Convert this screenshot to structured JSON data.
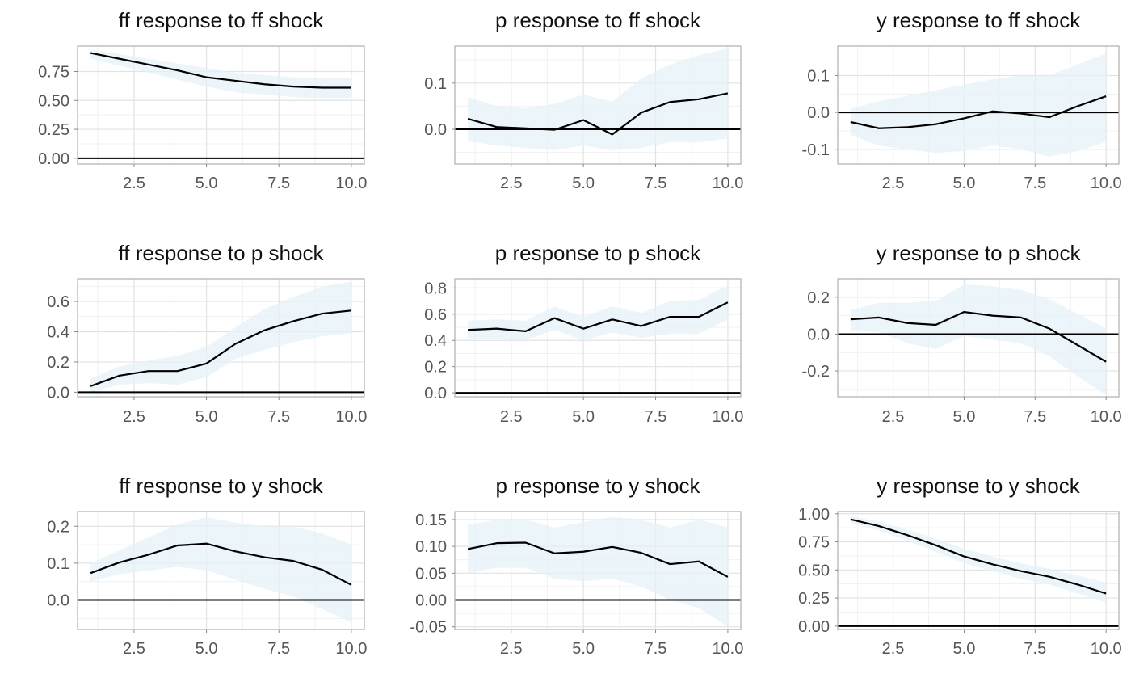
{
  "style": {
    "band_fill": "#e6f2f8",
    "line_color": "#000000",
    "zero_line_color": "#000000",
    "grid_major": "#e3e3e3",
    "grid_minor": "#f1f1f1",
    "panel_border": "#b5b5b5",
    "tick_text": "#555555"
  },
  "chart_data": [
    {
      "type": "line",
      "title": "ff response to ff shock",
      "x": [
        1,
        2,
        3,
        4,
        5,
        6,
        7,
        8,
        9,
        10
      ],
      "values": [
        0.91,
        0.86,
        0.81,
        0.76,
        0.7,
        0.67,
        0.64,
        0.62,
        0.61,
        0.61
      ],
      "lower": [
        0.86,
        0.8,
        0.74,
        0.68,
        0.62,
        0.57,
        0.55,
        0.53,
        0.52,
        0.52
      ],
      "upper": [
        0.94,
        0.9,
        0.86,
        0.82,
        0.78,
        0.74,
        0.72,
        0.7,
        0.69,
        0.69
      ],
      "xlim": [
        0.55,
        10.45
      ],
      "ylim": [
        -0.05,
        0.97
      ],
      "xticks": [
        2.5,
        5.0,
        7.5,
        10.0
      ],
      "xtick_labels": [
        "2.5",
        "5.0",
        "7.5",
        "10.0"
      ],
      "yticks": [
        0,
        0.25,
        0.5,
        0.75
      ],
      "ytick_labels": [
        "0.00",
        "0.25",
        "0.50",
        "0.75"
      ]
    },
    {
      "type": "line",
      "title": "p response to ff shock",
      "x": [
        1,
        2,
        3,
        4,
        5,
        6,
        7,
        8,
        9,
        10
      ],
      "values": [
        0.023,
        0.005,
        0.002,
        -0.001,
        0.02,
        -0.011,
        0.036,
        0.059,
        0.065,
        0.078
      ],
      "lower": [
        -0.025,
        -0.035,
        -0.04,
        -0.045,
        -0.035,
        -0.045,
        -0.04,
        -0.028,
        -0.028,
        -0.02
      ],
      "upper": [
        0.07,
        0.05,
        0.045,
        0.055,
        0.075,
        0.06,
        0.11,
        0.14,
        0.16,
        0.175
      ],
      "xlim": [
        0.55,
        10.45
      ],
      "ylim": [
        -0.075,
        0.18
      ],
      "xticks": [
        2.5,
        5.0,
        7.5,
        10.0
      ],
      "xtick_labels": [
        "2.5",
        "5.0",
        "7.5",
        "10.0"
      ],
      "yticks": [
        0,
        0.1
      ],
      "ytick_labels": [
        "0.0",
        "0.1"
      ]
    },
    {
      "type": "line",
      "title": "y response to ff shock",
      "x": [
        1,
        2,
        3,
        4,
        5,
        6,
        7,
        8,
        9,
        10
      ],
      "values": [
        -0.026,
        -0.043,
        -0.04,
        -0.032,
        -0.016,
        0.003,
        -0.003,
        -0.013,
        0.017,
        0.044
      ],
      "lower": [
        -0.06,
        -0.09,
        -0.1,
        -0.11,
        -0.105,
        -0.09,
        -0.1,
        -0.12,
        -0.105,
        -0.08
      ],
      "upper": [
        0.01,
        0.03,
        0.045,
        0.06,
        0.075,
        0.09,
        0.1,
        0.1,
        0.13,
        0.16
      ],
      "xlim": [
        0.55,
        10.45
      ],
      "ylim": [
        -0.14,
        0.18
      ],
      "xticks": [
        2.5,
        5.0,
        7.5,
        10.0
      ],
      "xtick_labels": [
        "2.5",
        "5.0",
        "7.5",
        "10.0"
      ],
      "yticks": [
        -0.1,
        0,
        0.1
      ],
      "ytick_labels": [
        "-0.1",
        "0.0",
        "0.1"
      ]
    },
    {
      "type": "line",
      "title": "ff response to p shock",
      "x": [
        1,
        2,
        3,
        4,
        5,
        6,
        7,
        8,
        9,
        10
      ],
      "values": [
        0.04,
        0.11,
        0.14,
        0.14,
        0.19,
        0.32,
        0.41,
        0.47,
        0.52,
        0.54
      ],
      "lower": [
        0.0,
        0.05,
        0.06,
        0.05,
        0.1,
        0.22,
        0.28,
        0.33,
        0.37,
        0.39
      ],
      "upper": [
        0.09,
        0.17,
        0.21,
        0.24,
        0.3,
        0.43,
        0.55,
        0.63,
        0.7,
        0.73
      ],
      "xlim": [
        0.55,
        10.45
      ],
      "ylim": [
        -0.03,
        0.75
      ],
      "xticks": [
        2.5,
        5.0,
        7.5,
        10.0
      ],
      "xtick_labels": [
        "2.5",
        "5.0",
        "7.5",
        "10.0"
      ],
      "yticks": [
        0,
        0.2,
        0.4,
        0.6
      ],
      "ytick_labels": [
        "0.0",
        "0.2",
        "0.4",
        "0.6"
      ]
    },
    {
      "type": "line",
      "title": "p response to p shock",
      "x": [
        1,
        2,
        3,
        4,
        5,
        6,
        7,
        8,
        9,
        10
      ],
      "values": [
        0.48,
        0.49,
        0.47,
        0.57,
        0.49,
        0.56,
        0.51,
        0.58,
        0.58,
        0.69
      ],
      "lower": [
        0.41,
        0.41,
        0.4,
        0.48,
        0.4,
        0.46,
        0.42,
        0.45,
        0.45,
        0.56
      ],
      "upper": [
        0.55,
        0.56,
        0.55,
        0.66,
        0.58,
        0.66,
        0.61,
        0.7,
        0.71,
        0.82
      ],
      "xlim": [
        0.55,
        10.45
      ],
      "ylim": [
        -0.03,
        0.87
      ],
      "xticks": [
        2.5,
        5.0,
        7.5,
        10.0
      ],
      "xtick_labels": [
        "2.5",
        "5.0",
        "7.5",
        "10.0"
      ],
      "yticks": [
        0,
        0.2,
        0.4,
        0.6,
        0.8
      ],
      "ytick_labels": [
        "0.0",
        "0.2",
        "0.4",
        "0.6",
        "0.8"
      ]
    },
    {
      "type": "line",
      "title": "y response to p shock",
      "x": [
        1,
        2,
        3,
        4,
        5,
        6,
        7,
        8,
        9,
        10
      ],
      "values": [
        0.08,
        0.09,
        0.06,
        0.05,
        0.12,
        0.1,
        0.09,
        0.03,
        -0.06,
        -0.15
      ],
      "lower": [
        0.02,
        0.01,
        -0.05,
        -0.08,
        -0.01,
        -0.03,
        -0.05,
        -0.12,
        -0.23,
        -0.33
      ],
      "upper": [
        0.13,
        0.17,
        0.17,
        0.18,
        0.27,
        0.26,
        0.24,
        0.19,
        0.11,
        0.03
      ],
      "xlim": [
        0.55,
        10.45
      ],
      "ylim": [
        -0.34,
        0.3
      ],
      "xticks": [
        2.5,
        5.0,
        7.5,
        10.0
      ],
      "xtick_labels": [
        "2.5",
        "5.0",
        "7.5",
        "10.0"
      ],
      "yticks": [
        -0.2,
        0,
        0.2
      ],
      "ytick_labels": [
        "-0.2",
        "0.0",
        "0.2"
      ]
    },
    {
      "type": "line",
      "title": "ff response to y shock",
      "x": [
        1,
        2,
        3,
        4,
        5,
        6,
        7,
        8,
        9,
        10
      ],
      "values": [
        0.073,
        0.102,
        0.123,
        0.148,
        0.153,
        0.132,
        0.116,
        0.106,
        0.082,
        0.041
      ],
      "lower": [
        0.05,
        0.07,
        0.08,
        0.09,
        0.08,
        0.055,
        0.03,
        0.01,
        -0.025,
        -0.06
      ],
      "upper": [
        0.1,
        0.135,
        0.17,
        0.205,
        0.225,
        0.21,
        0.2,
        0.2,
        0.18,
        0.15
      ],
      "xlim": [
        0.55,
        10.45
      ],
      "ylim": [
        -0.08,
        0.24
      ],
      "xticks": [
        2.5,
        5.0,
        7.5,
        10.0
      ],
      "xtick_labels": [
        "2.5",
        "5.0",
        "7.5",
        "10.0"
      ],
      "yticks": [
        0,
        0.1,
        0.2
      ],
      "ytick_labels": [
        "0.0",
        "0.1",
        "0.2"
      ]
    },
    {
      "type": "line",
      "title": "p response to y shock",
      "x": [
        1,
        2,
        3,
        4,
        5,
        6,
        7,
        8,
        9,
        10
      ],
      "values": [
        0.095,
        0.106,
        0.107,
        0.087,
        0.09,
        0.099,
        0.088,
        0.067,
        0.072,
        0.043
      ],
      "lower": [
        0.05,
        0.06,
        0.06,
        0.04,
        0.035,
        0.04,
        0.025,
        0.0,
        -0.015,
        -0.05
      ],
      "upper": [
        0.14,
        0.15,
        0.15,
        0.135,
        0.145,
        0.155,
        0.15,
        0.135,
        0.15,
        0.135
      ],
      "xlim": [
        0.55,
        10.45
      ],
      "ylim": [
        -0.055,
        0.165
      ],
      "xticks": [
        2.5,
        5.0,
        7.5,
        10.0
      ],
      "xtick_labels": [
        "2.5",
        "5.0",
        "7.5",
        "10.0"
      ],
      "yticks": [
        -0.05,
        0,
        0.05,
        0.1,
        0.15
      ],
      "ytick_labels": [
        "-0.05",
        "0.00",
        "0.05",
        "0.10",
        "0.15"
      ]
    },
    {
      "type": "line",
      "title": "y response to y shock",
      "x": [
        1,
        2,
        3,
        4,
        5,
        6,
        7,
        8,
        9,
        10
      ],
      "values": [
        0.95,
        0.89,
        0.81,
        0.72,
        0.62,
        0.55,
        0.49,
        0.44,
        0.37,
        0.29
      ],
      "lower": [
        0.92,
        0.85,
        0.76,
        0.66,
        0.56,
        0.49,
        0.42,
        0.37,
        0.29,
        0.21
      ],
      "upper": [
        0.98,
        0.93,
        0.86,
        0.78,
        0.69,
        0.62,
        0.56,
        0.51,
        0.45,
        0.39
      ],
      "xlim": [
        0.55,
        10.45
      ],
      "ylim": [
        -0.03,
        1.02
      ],
      "xticks": [
        2.5,
        5.0,
        7.5,
        10.0
      ],
      "xtick_labels": [
        "2.5",
        "5.0",
        "7.5",
        "10.0"
      ],
      "yticks": [
        0,
        0.25,
        0.5,
        0.75,
        1.0
      ],
      "ytick_labels": [
        "0.00",
        "0.25",
        "0.50",
        "0.75",
        "1.00"
      ]
    }
  ]
}
